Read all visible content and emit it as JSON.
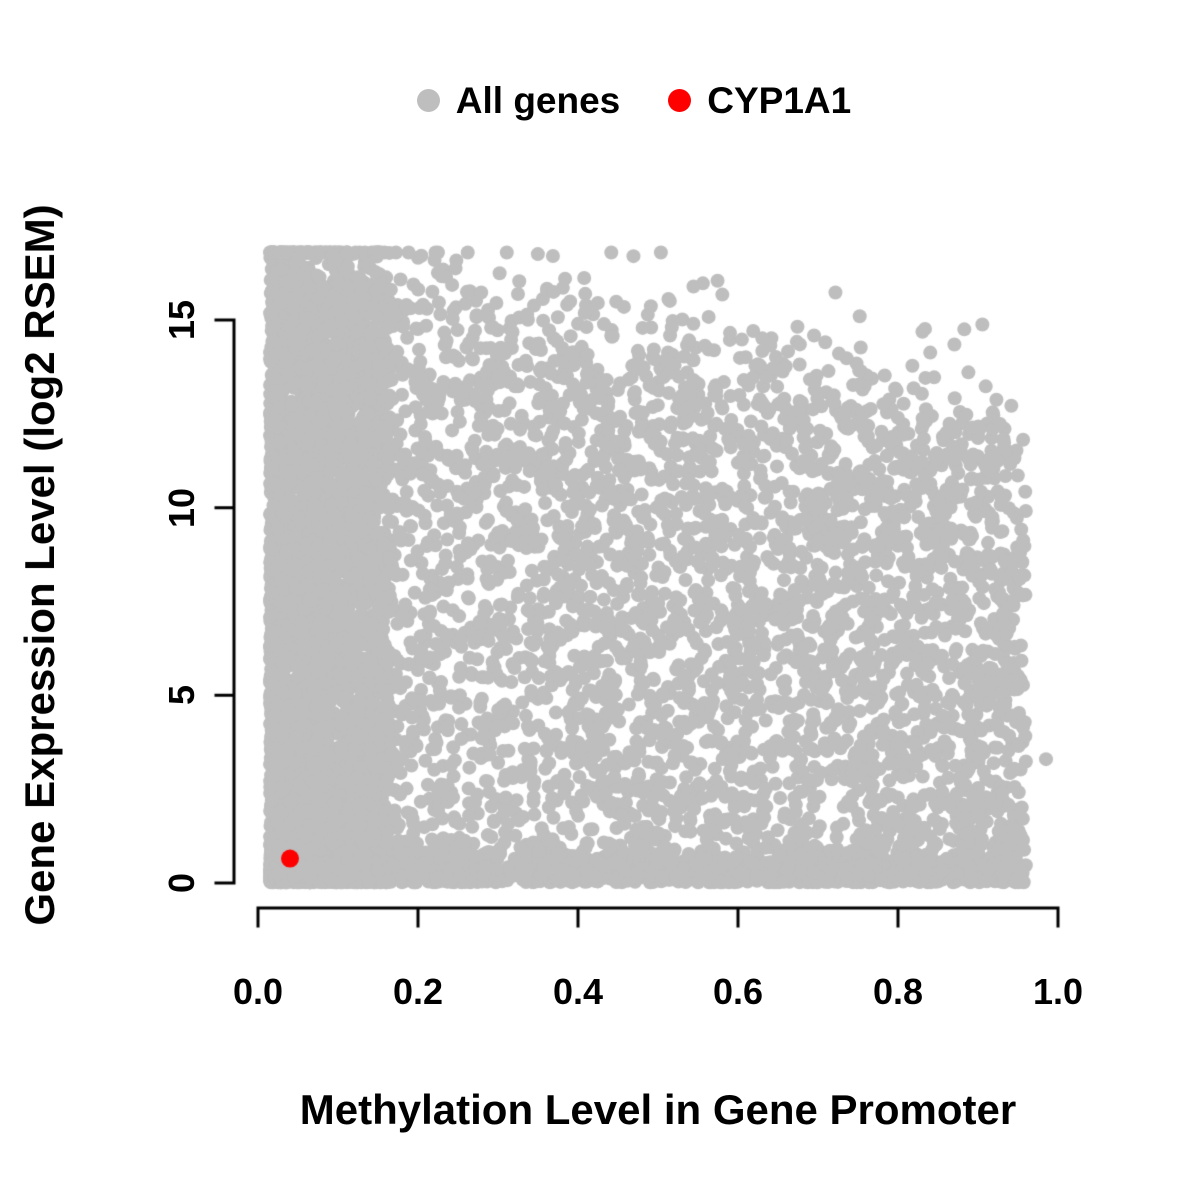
{
  "chart_data": {
    "type": "scatter",
    "title": "",
    "xlabel": "Methylation Level in Gene Promoter",
    "ylabel": "Gene Expression Level (log2 RSEM)",
    "xlim": [
      0.0,
      1.0
    ],
    "ylim": [
      0,
      17
    ],
    "grid": false,
    "legend_position": "top-center",
    "axis_color": "#000000",
    "x_ticks": [
      0.0,
      0.2,
      0.4,
      0.6,
      0.8,
      1.0
    ],
    "x_tick_labels": [
      "0.0",
      "0.2",
      "0.4",
      "0.6",
      "0.8",
      "1.0"
    ],
    "y_ticks": [
      0,
      5,
      10,
      15
    ],
    "y_tick_labels": [
      "0",
      "5",
      "10",
      "15"
    ],
    "legend": [
      {
        "label": "All genes",
        "color": "#BEBEBE"
      },
      {
        "label": "CYP1A1",
        "color": "#FF0000"
      }
    ],
    "series": [
      {
        "name": "All genes",
        "color": "#BEBEBE",
        "type": "generated_scatter",
        "description": "Dense cloud of thousands of genes; expression spans 0-16.7 at low promoter methylation, upper envelope declines to ~12 at methylation ~0.95; dense band near expression 0 across all methylation levels; heaviest density at methylation < 0.15.",
        "generator": {
          "seed": 20240915,
          "n": 9000,
          "x_min": 0.015,
          "x_max": 0.96,
          "left_strip_fraction": 0.38,
          "left_strip_width": 0.15,
          "left_strip_power": 1.4,
          "baseline_fraction": 0.2,
          "baseline_sd": 0.35,
          "fringe_fraction": 0.02,
          "envelope_intercept": 16.9,
          "envelope_slope": -5.0,
          "envelope_noise_sd": 0.6,
          "y_cap": 16.8,
          "extra_points": [
            [
              0.985,
              3.3
            ]
          ]
        }
      },
      {
        "name": "CYP1A1",
        "color": "#FF0000",
        "points": [
          [
            0.04,
            0.65
          ]
        ]
      }
    ]
  }
}
